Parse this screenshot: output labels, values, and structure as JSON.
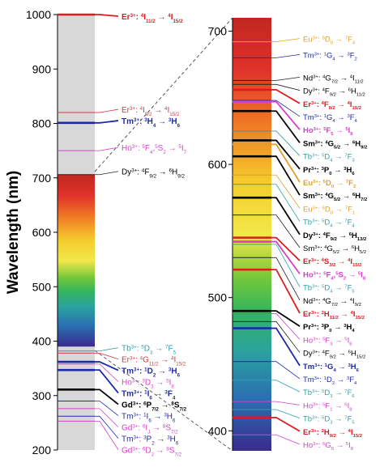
{
  "left_axis": {
    "ylabel": "Wavelength (nm)",
    "ticks": [
      1000,
      900,
      800,
      700,
      600,
      500,
      400,
      300,
      200
    ]
  },
  "right_axis": {
    "ticks": [
      700,
      600,
      500,
      400
    ]
  },
  "left_lines": [
    {
      "wl": 1000,
      "bold": true,
      "color": "#e0191e",
      "ion": "Er",
      "charge": "3+",
      "lower": {
        "pre": "4",
        "sym": "I",
        "sub": "11/2"
      },
      "upper": {
        "pre": "4",
        "sym": "I",
        "sub": "15/2"
      }
    },
    {
      "wl": 820,
      "bold": false,
      "color": "#d63a3a",
      "ion": "Er",
      "charge": "3+",
      "lower": {
        "pre": "4",
        "sym": "I",
        "sub": "9/2"
      },
      "upper": {
        "pre": "4",
        "sym": "I",
        "sub": "15/2"
      }
    },
    {
      "wl": 801,
      "bold": true,
      "color": "#1d2aa8",
      "ion": "Tm",
      "charge": "3+",
      "lower": {
        "pre": "3",
        "sym": "H",
        "sub": "4"
      },
      "upper": {
        "pre": "3",
        "sym": "H",
        "sub": "6"
      }
    },
    {
      "wl": 750,
      "bold": false,
      "color": "#d640c8",
      "ion": "Ho",
      "charge": "3+",
      "lower": {
        "pre": "5",
        "sym": "F",
        "sub": "4"
      },
      "mid": {
        "pre": "5",
        "sym": "S",
        "sub": "2"
      },
      "upper": {
        "pre": "5",
        "sym": "I",
        "sub": "7"
      }
    },
    {
      "wl": 706,
      "bold": false,
      "color": "#000000",
      "ion": "Dy",
      "charge": "3+",
      "lower": {
        "pre": "4",
        "sym": "F",
        "sub": "9/2"
      },
      "upper": {
        "pre": "6",
        "sym": "H",
        "sub": "9/2"
      }
    },
    {
      "wl": 382,
      "bold": false,
      "color": "#2aa2a6",
      "ion": "Tb",
      "charge": "3+",
      "lower": {
        "pre": "5",
        "sym": "D",
        "sub": "3"
      },
      "upper": {
        "pre": "7",
        "sym": "F",
        "sub": "5"
      }
    },
    {
      "wl": 378,
      "bold": false,
      "color": "#d63a3a",
      "ion": "Er",
      "charge": "3+",
      "lower": {
        "pre": "4",
        "sym": "G",
        "sub": "11/2"
      },
      "upper": {
        "pre": "4",
        "sym": "I",
        "sub": "15/2"
      }
    },
    {
      "wl": 362,
      "bold": true,
      "color": "#1d2aa8",
      "ion": "Tm",
      "charge": "3+",
      "lower": {
        "pre": "1",
        "sym": "D",
        "sub": "2"
      },
      "upper": {
        "pre": "3",
        "sym": "H",
        "sub": "6"
      }
    },
    {
      "wl": 358,
      "bold": false,
      "color": "#d640c8",
      "ion": "Ho",
      "charge": "3+",
      "lower": {
        "pre": "3",
        "sym": "D",
        "sub": "3"
      },
      "upper": {
        "pre": "5",
        "sym": "I",
        "sub": "8"
      }
    },
    {
      "wl": 347,
      "bold": true,
      "color": "#1d2aa8",
      "ion": "Tm",
      "charge": "3+",
      "lower": {
        "pre": "1",
        "sym": "I",
        "sub": "6"
      },
      "upper": {
        "pre": "3",
        "sym": "F",
        "sub": "4"
      }
    },
    {
      "wl": 311,
      "bold": true,
      "color": "#000000",
      "ion": "Gd",
      "charge": "3+",
      "lower": {
        "pre": "6",
        "sym": "P",
        "sub": "7/2"
      },
      "upper": {
        "pre": "8",
        "sym": "S",
        "sub": "7/2"
      }
    },
    {
      "wl": 290,
      "bold": false,
      "color": "#1d2aa8",
      "ion": "Tm",
      "charge": "3+",
      "lower": {
        "pre": "1",
        "sym": "I",
        "sub": "6"
      },
      "upper": {
        "pre": "3",
        "sym": "H",
        "sub": "6"
      }
    },
    {
      "wl": 276,
      "bold": false,
      "color": "#d640c8",
      "ion": "Gd",
      "charge": "3+",
      "lower": {
        "pre": "6",
        "sym": "I",
        "sub": "J"
      },
      "upper": {
        "pre": "8",
        "sym": "S",
        "sub": "7/2"
      }
    },
    {
      "wl": 262,
      "bold": false,
      "color": "#1d2aa8",
      "ion": "Tm",
      "charge": "3+",
      "lower": {
        "pre": "3",
        "sym": "P",
        "sub": "2"
      },
      "upper": {
        "pre": "3",
        "sym": "H",
        "sub": "6"
      }
    },
    {
      "wl": 253,
      "bold": false,
      "color": "#d640c8",
      "ion": "Gd",
      "charge": "3+",
      "lower": {
        "pre": "6",
        "sym": "D",
        "sub": "J"
      },
      "upper": {
        "pre": "8",
        "sym": "S",
        "sub": "7/2"
      }
    }
  ],
  "right_lines": [
    {
      "wl": 692,
      "bold": false,
      "color": "#e0a030",
      "ion": "Eu",
      "charge": "3+",
      "lower": {
        "pre": "5",
        "sym": "D",
        "sub": "0"
      },
      "upper": {
        "pre": "7",
        "sym": "F",
        "sub": "4"
      }
    },
    {
      "wl": 680,
      "bold": false,
      "color": "#1d2aa8",
      "ion": "Tm",
      "charge": "3+",
      "lower": {
        "pre": "1",
        "sym": "G",
        "sub": "4"
      },
      "upper": {
        "pre": "3",
        "sym": "F",
        "sub": "2"
      }
    },
    {
      "wl": 663,
      "bold": false,
      "color": "#000000",
      "ion": "Nd",
      "charge": "3+",
      "lower": {
        "pre": "4",
        "sym": "G",
        "sub": "7/2"
      },
      "upper": {
        "pre": "4",
        "sym": "I",
        "sub": "11/2"
      }
    },
    {
      "wl": 660,
      "bold": false,
      "color": "#000000",
      "ion": "Dy",
      "charge": "3+",
      "lower": {
        "pre": "4",
        "sym": "F",
        "sub": "9/2"
      },
      "upper": {
        "pre": "6",
        "sym": "H",
        "sub": "11/2"
      }
    },
    {
      "wl": 656,
      "bold": true,
      "color": "#e0191e",
      "ion": "Er",
      "charge": "3+",
      "lower": {
        "pre": "4",
        "sym": "F",
        "sub": "9/2"
      },
      "upper": {
        "pre": "4",
        "sym": "I",
        "sub": "15/2"
      }
    },
    {
      "wl": 648,
      "bold": false,
      "color": "#1d2aa8",
      "ion": "Tm",
      "charge": "3+",
      "lower": {
        "pre": "1",
        "sym": "G",
        "sub": "4"
      },
      "upper": {
        "pre": "3",
        "sym": "F",
        "sub": "4"
      }
    },
    {
      "wl": 647,
      "bold": true,
      "color": "#d640c8",
      "ion": "Ho",
      "charge": "3+",
      "lower": {
        "pre": "5",
        "sym": "F",
        "sub": "5"
      },
      "upper": {
        "pre": "5",
        "sym": "I",
        "sub": "8"
      }
    },
    {
      "wl": 640,
      "bold": true,
      "color": "#000000",
      "ion": "Sm",
      "charge": "3+",
      "lower": {
        "pre": "4",
        "sym": "G",
        "sub": "5/2"
      },
      "upper": {
        "pre": "6",
        "sym": "H",
        "sub": "9/2"
      }
    },
    {
      "wl": 625,
      "bold": false,
      "color": "#2aa2a6",
      "ion": "Tb",
      "charge": "3+",
      "lower": {
        "pre": "5",
        "sym": "D",
        "sub": "4"
      },
      "upper": {
        "pre": "7",
        "sym": "F",
        "sub": "3"
      }
    },
    {
      "wl": 618,
      "bold": true,
      "color": "#000000",
      "ion": "Pr",
      "charge": "3+",
      "lower": {
        "pre": "3",
        "sym": "P",
        "sub": "0"
      },
      "upper": {
        "pre": "3",
        "sym": "H",
        "sub": "6"
      }
    },
    {
      "wl": 615,
      "bold": true,
      "color": "#e0a030",
      "ion": "Eu",
      "charge": "3+",
      "lower": {
        "pre": "5",
        "sym": "D",
        "sub": "0"
      },
      "upper": {
        "pre": "7",
        "sym": "F",
        "sub": "2"
      }
    },
    {
      "wl": 606,
      "bold": true,
      "color": "#000000",
      "ion": "Sm",
      "charge": "3+",
      "lower": {
        "pre": "4",
        "sym": "G",
        "sub": "5/2"
      },
      "upper": {
        "pre": "6",
        "sym": "H",
        "sub": "7/2"
      }
    },
    {
      "wl": 592,
      "bold": false,
      "color": "#e0a030",
      "ion": "Eu",
      "charge": "3+",
      "lower": {
        "pre": "5",
        "sym": "D",
        "sub": "0"
      },
      "upper": {
        "pre": "7",
        "sym": "F",
        "sub": "1"
      }
    },
    {
      "wl": 585,
      "bold": false,
      "color": "#2aa2a6",
      "ion": "Tb",
      "charge": "3+",
      "lower": {
        "pre": "5",
        "sym": "D",
        "sub": "4"
      },
      "upper": {
        "pre": "7",
        "sym": "F",
        "sub": "4"
      }
    },
    {
      "wl": 575,
      "bold": true,
      "color": "#000000",
      "ion": "Dy",
      "charge": "3+",
      "lower": {
        "pre": "4",
        "sym": "F",
        "sub": "9/2"
      },
      "upper": {
        "pre": "6",
        "sym": "H",
        "sub": "13/2"
      }
    },
    {
      "wl": 562,
      "bold": false,
      "color": "#000000",
      "ion": "Sm",
      "charge": "3+",
      "lower": {
        "pre": "4",
        "sym": "G",
        "sub": "5/2"
      },
      "upper": {
        "pre": "6",
        "sym": "H",
        "sub": "5/2"
      }
    },
    {
      "wl": 545,
      "bold": true,
      "color": "#e0191e",
      "ion": "Er",
      "charge": "3+",
      "lower": {
        "pre": "4",
        "sym": "S",
        "sub": "3/2"
      },
      "upper": {
        "pre": "4",
        "sym": "I",
        "sub": "15/2"
      }
    },
    {
      "wl": 542,
      "bold": true,
      "color": "#d640c8",
      "ion": "Ho",
      "charge": "3+",
      "lower": {
        "pre": "5",
        "sym": "F",
        "sub": "4"
      },
      "mid": {
        "pre": "5",
        "sym": "S",
        "sub": "2"
      },
      "upper": {
        "pre": "5",
        "sym": "I",
        "sub": "8"
      }
    },
    {
      "wl": 540,
      "bold": false,
      "color": "#2aa2a6",
      "ion": "Tb",
      "charge": "3+",
      "lower": {
        "pre": "5",
        "sym": "D",
        "sub": "4"
      },
      "upper": {
        "pre": "7",
        "sym": "F",
        "sub": "5"
      }
    },
    {
      "wl": 530,
      "bold": false,
      "color": "#000000",
      "ion": "Nd",
      "charge": "3+",
      "lower": {
        "pre": "4",
        "sym": "G",
        "sub": "7/2"
      },
      "upper": {
        "pre": "4",
        "sym": "I",
        "sub": "9/2"
      }
    },
    {
      "wl": 521,
      "bold": true,
      "color": "#e0191e",
      "ion": "Er",
      "charge": "3+",
      "lower": {
        "pre": "2",
        "sym": "H",
        "sub": "11/2"
      },
      "upper": {
        "pre": "4",
        "sym": "I",
        "sub": "15/2"
      }
    },
    {
      "wl": 490,
      "bold": true,
      "color": "#000000",
      "ion": "Pr",
      "charge": "3+",
      "lower": {
        "pre": "3",
        "sym": "P",
        "sub": "0"
      },
      "upper": {
        "pre": "3",
        "sym": "H",
        "sub": "4"
      }
    },
    {
      "wl": 488,
      "bold": false,
      "color": "#d640c8",
      "ion": "Ho",
      "charge": "3+",
      "lower": {
        "pre": "5",
        "sym": "F",
        "sub": "3"
      },
      "upper": {
        "pre": "5",
        "sym": "I",
        "sub": "8"
      }
    },
    {
      "wl": 482,
      "bold": false,
      "color": "#000000",
      "ion": "Dy",
      "charge": "3+",
      "lower": {
        "pre": "4",
        "sym": "F",
        "sub": "9/2"
      },
      "upper": {
        "pre": "6",
        "sym": "H",
        "sub": "15/2"
      }
    },
    {
      "wl": 477,
      "bold": true,
      "color": "#1d2aa8",
      "ion": "Tm",
      "charge": "3+",
      "lower": {
        "pre": "1",
        "sym": "G",
        "sub": "4"
      },
      "upper": {
        "pre": "3",
        "sym": "H",
        "sub": "6"
      }
    },
    {
      "wl": 452,
      "bold": false,
      "color": "#1d2aa8",
      "ion": "Tm",
      "charge": "3+",
      "lower": {
        "pre": "1",
        "sym": "D",
        "sub": "2"
      },
      "upper": {
        "pre": "3",
        "sym": "F",
        "sub": "4"
      }
    },
    {
      "wl": 438,
      "bold": false,
      "color": "#2aa2a6",
      "ion": "Tb",
      "charge": "3+",
      "lower": {
        "pre": "5",
        "sym": "D",
        "sub": "3"
      },
      "upper": {
        "pre": "7",
        "sym": "F",
        "sub": "6"
      }
    },
    {
      "wl": 422,
      "bold": false,
      "color": "#d640c8",
      "ion": "Ho",
      "charge": "3+",
      "lower": {
        "pre": "5",
        "sym": "F",
        "sub": "1"
      },
      "upper": {
        "pre": "5",
        "sym": "I",
        "sub": "8"
      }
    },
    {
      "wl": 416,
      "bold": false,
      "color": "#2aa2a6",
      "ion": "Tb",
      "charge": "3+",
      "lower": {
        "pre": "5",
        "sym": "D",
        "sub": "3"
      },
      "upper": {
        "pre": "7",
        "sym": "F",
        "sub": "5"
      }
    },
    {
      "wl": 410,
      "bold": true,
      "color": "#e0191e",
      "ion": "Er",
      "charge": "3+",
      "lower": {
        "pre": "2",
        "sym": "H",
        "sub": "9/2"
      },
      "upper": {
        "pre": "4",
        "sym": "I",
        "sub": "15/2"
      }
    },
    {
      "wl": 397,
      "bold": false,
      "color": "#d640c8",
      "ion": "Ho",
      "charge": "3+",
      "lower": {
        "pre": "5",
        "sym": "G",
        "sub": "5"
      },
      "upper": {
        "pre": "5",
        "sym": "I",
        "sub": "8"
      }
    }
  ]
}
